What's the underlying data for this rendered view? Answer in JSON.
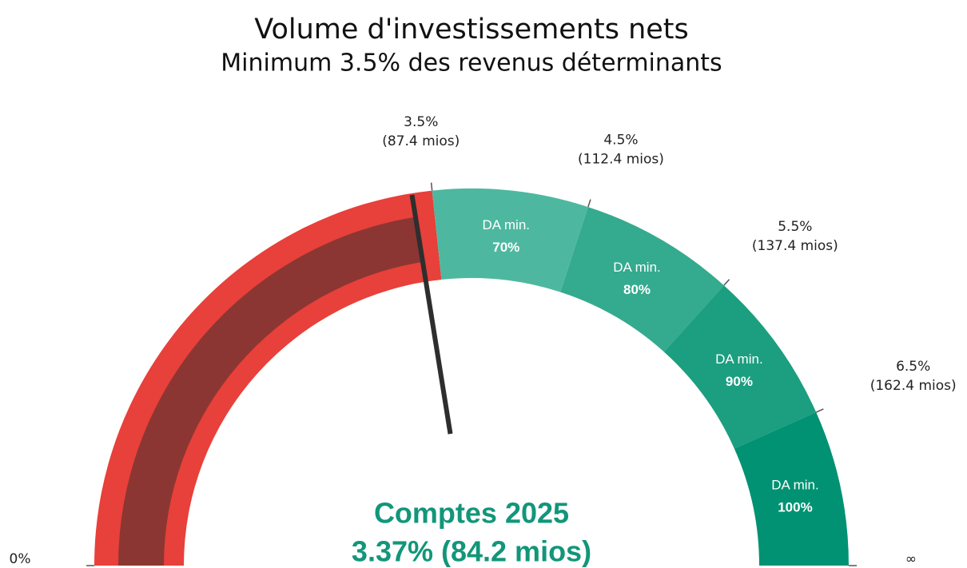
{
  "chart_data": {
    "type": "gauge",
    "title": "Volume d'investissements nets",
    "subtitle": "Minimum 3.5% des revenus déterminants",
    "ylim": [
      0,
      7.5
    ],
    "yticks": [
      {
        "value": 0,
        "label": "0%"
      },
      {
        "value": 3.5,
        "label": "3.5%",
        "sublabel": "(87.4 mios)"
      },
      {
        "value": 4.5,
        "label": "4.5%",
        "sublabel": "(112.4 mios)"
      },
      {
        "value": 5.5,
        "label": "5.5%",
        "sublabel": "(137.4 mios)"
      },
      {
        "value": 6.5,
        "label": "6.5%",
        "sublabel": "(162.4 mios)"
      },
      {
        "value": 7.5,
        "label": "∞"
      }
    ],
    "bands": [
      {
        "from": 0,
        "to": 3.5,
        "color": "#e8403a"
      },
      {
        "from": 3.5,
        "to": 4.5,
        "color": "#4db89f",
        "label": "DA min.",
        "sublabel": "70%"
      },
      {
        "from": 4.5,
        "to": 5.5,
        "color": "#34aa8e",
        "label": "DA min.",
        "sublabel": "80%"
      },
      {
        "from": 5.5,
        "to": 6.5,
        "color": "#1c9e80",
        "label": "DA min.",
        "sublabel": "90%"
      },
      {
        "from": 6.5,
        "to": 7.5,
        "color": "#009272",
        "label": "DA min.",
        "sublabel": "100%"
      }
    ],
    "value": 3.37,
    "value_color": "#8b3632",
    "needle_color": "#2e2e2e",
    "caption": "Comptes 2025",
    "value_label": "3.37% (84.2 mios)",
    "caption_color": "#12967a"
  }
}
